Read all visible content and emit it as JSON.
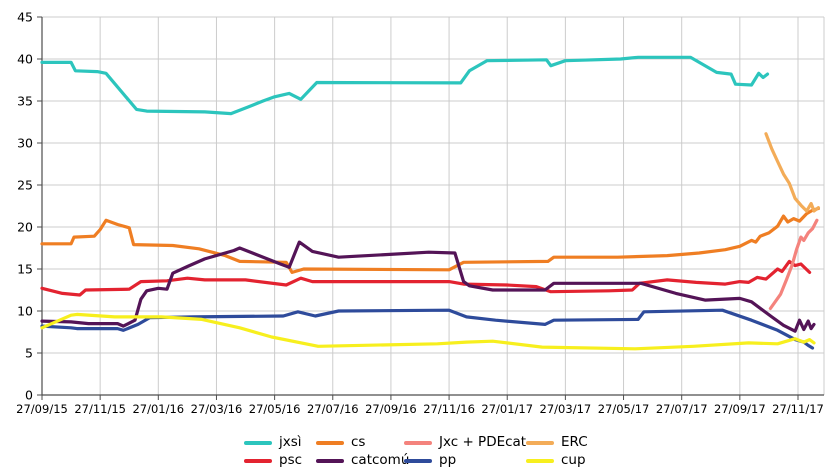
{
  "chart_data": {
    "type": "line",
    "title": "",
    "xlabel": "",
    "ylabel": "",
    "grid": true,
    "legend_position": "bottom",
    "ylim": [
      0,
      45
    ],
    "y_ticks": [
      0,
      5,
      10,
      15,
      20,
      25,
      30,
      35,
      40,
      45
    ],
    "x_tick_labels": [
      "27/09/15",
      "27/11/15",
      "27/01/16",
      "27/03/16",
      "27/05/16",
      "27/07/16",
      "27/09/16",
      "27/11/16",
      "27/01/17",
      "27/03/17",
      "27/05/17",
      "27/07/17",
      "27/09/17",
      "27/11/17"
    ],
    "x_unit": "months since 27/09/15, ticks every 2 months",
    "xlim_months": [
      0,
      26.9
    ],
    "series": [
      {
        "id": "jxsi",
        "name": "jxsì",
        "color": "#2cc5bd",
        "points": [
          [
            0,
            39.6
          ],
          [
            1.0,
            39.6
          ],
          [
            1.15,
            38.6
          ],
          [
            1.9,
            38.5
          ],
          [
            2.2,
            38.3
          ],
          [
            3.25,
            34.0
          ],
          [
            3.6,
            33.8
          ],
          [
            5.6,
            33.7
          ],
          [
            6.5,
            33.5
          ],
          [
            7.1,
            34.3
          ],
          [
            7.6,
            35.0
          ],
          [
            8.0,
            35.5
          ],
          [
            8.5,
            35.9
          ],
          [
            8.9,
            35.2
          ],
          [
            9.45,
            37.2
          ],
          [
            14.4,
            37.15
          ],
          [
            14.7,
            38.6
          ],
          [
            15.3,
            39.8
          ],
          [
            17.35,
            39.9
          ],
          [
            17.5,
            39.2
          ],
          [
            18.0,
            39.8
          ],
          [
            19.9,
            40.0
          ],
          [
            20.5,
            40.2
          ],
          [
            22.3,
            40.2
          ],
          [
            23.2,
            38.4
          ],
          [
            23.7,
            38.2
          ],
          [
            23.85,
            37.0
          ],
          [
            24.4,
            36.9
          ],
          [
            24.65,
            38.3
          ],
          [
            24.8,
            37.8
          ],
          [
            24.95,
            38.2
          ]
        ]
      },
      {
        "id": "cs",
        "name": "cs",
        "color": "#ef7e23",
        "points": [
          [
            0,
            18.0
          ],
          [
            1.0,
            18.0
          ],
          [
            1.1,
            18.8
          ],
          [
            1.8,
            18.9
          ],
          [
            2.0,
            19.7
          ],
          [
            2.2,
            20.8
          ],
          [
            2.6,
            20.3
          ],
          [
            3.0,
            19.9
          ],
          [
            3.15,
            17.9
          ],
          [
            4.5,
            17.8
          ],
          [
            5.4,
            17.4
          ],
          [
            6.3,
            16.6
          ],
          [
            6.8,
            15.9
          ],
          [
            8.4,
            15.8
          ],
          [
            8.6,
            14.6
          ],
          [
            9.0,
            15.0
          ],
          [
            14.0,
            14.9
          ],
          [
            14.5,
            15.8
          ],
          [
            17.4,
            15.9
          ],
          [
            17.6,
            16.4
          ],
          [
            19.8,
            16.4
          ],
          [
            21.5,
            16.6
          ],
          [
            22.6,
            16.9
          ],
          [
            23.5,
            17.3
          ],
          [
            24.0,
            17.7
          ],
          [
            24.4,
            18.4
          ],
          [
            24.55,
            18.2
          ],
          [
            24.7,
            18.9
          ],
          [
            25.0,
            19.3
          ],
          [
            25.3,
            20.1
          ],
          [
            25.5,
            21.3
          ],
          [
            25.65,
            20.6
          ],
          [
            25.85,
            21.0
          ],
          [
            26.05,
            20.7
          ],
          [
            26.3,
            21.6
          ],
          [
            26.5,
            22.0
          ],
          [
            26.7,
            22.2
          ]
        ]
      },
      {
        "id": "erc",
        "name": "ERC",
        "color": "#f3ac58",
        "points": [
          [
            24.9,
            31.1
          ],
          [
            25.1,
            29.3
          ],
          [
            25.3,
            27.8
          ],
          [
            25.5,
            26.3
          ],
          [
            25.7,
            25.2
          ],
          [
            25.9,
            23.4
          ],
          [
            26.1,
            22.6
          ],
          [
            26.3,
            21.9
          ],
          [
            26.45,
            22.8
          ],
          [
            26.55,
            21.9
          ],
          [
            26.7,
            22.3
          ]
        ]
      },
      {
        "id": "psc",
        "name": "psc",
        "color": "#e32330",
        "points": [
          [
            0,
            12.7
          ],
          [
            0.7,
            12.1
          ],
          [
            1.3,
            11.9
          ],
          [
            1.5,
            12.5
          ],
          [
            3.0,
            12.6
          ],
          [
            3.4,
            13.5
          ],
          [
            4.3,
            13.6
          ],
          [
            5.0,
            13.9
          ],
          [
            5.6,
            13.7
          ],
          [
            7.0,
            13.7
          ],
          [
            8.4,
            13.1
          ],
          [
            8.9,
            13.9
          ],
          [
            9.3,
            13.5
          ],
          [
            14.0,
            13.5
          ],
          [
            14.5,
            13.2
          ],
          [
            16.0,
            13.1
          ],
          [
            17.0,
            12.9
          ],
          [
            17.5,
            12.3
          ],
          [
            19.5,
            12.4
          ],
          [
            20.3,
            12.5
          ],
          [
            20.55,
            13.3
          ],
          [
            21.5,
            13.7
          ],
          [
            22.5,
            13.4
          ],
          [
            23.5,
            13.2
          ],
          [
            24.0,
            13.5
          ],
          [
            24.3,
            13.4
          ],
          [
            24.6,
            14.0
          ],
          [
            24.9,
            13.8
          ],
          [
            25.3,
            15.0
          ],
          [
            25.45,
            14.7
          ],
          [
            25.7,
            15.9
          ],
          [
            25.9,
            15.4
          ],
          [
            26.1,
            15.6
          ],
          [
            26.4,
            14.6
          ]
        ]
      },
      {
        "id": "jxc_pdecat",
        "name": "Jxc + PDEcat",
        "color": "#f4837d",
        "points": [
          [
            25.05,
            10.3
          ],
          [
            25.4,
            12.0
          ],
          [
            25.6,
            13.7
          ],
          [
            25.8,
            15.5
          ],
          [
            25.95,
            17.3
          ],
          [
            26.1,
            18.8
          ],
          [
            26.2,
            18.4
          ],
          [
            26.35,
            19.3
          ],
          [
            26.5,
            19.8
          ],
          [
            26.65,
            20.8
          ]
        ]
      },
      {
        "id": "catcomu",
        "name": "catcomú",
        "color": "#541457",
        "points": [
          [
            0,
            8.8
          ],
          [
            1.0,
            8.7
          ],
          [
            1.6,
            8.5
          ],
          [
            2.6,
            8.5
          ],
          [
            2.8,
            8.2
          ],
          [
            3.2,
            8.9
          ],
          [
            3.4,
            11.4
          ],
          [
            3.6,
            12.4
          ],
          [
            4.0,
            12.7
          ],
          [
            4.3,
            12.6
          ],
          [
            4.5,
            14.5
          ],
          [
            5.0,
            15.3
          ],
          [
            5.6,
            16.2
          ],
          [
            6.6,
            17.2
          ],
          [
            6.8,
            17.5
          ],
          [
            8.2,
            15.6
          ],
          [
            8.5,
            15.2
          ],
          [
            8.85,
            18.2
          ],
          [
            9.3,
            17.1
          ],
          [
            10.2,
            16.4
          ],
          [
            13.3,
            17.0
          ],
          [
            14.2,
            16.9
          ],
          [
            14.5,
            13.5
          ],
          [
            14.7,
            13.0
          ],
          [
            15.5,
            12.5
          ],
          [
            17.3,
            12.5
          ],
          [
            17.6,
            13.3
          ],
          [
            20.6,
            13.3
          ],
          [
            21.8,
            12.1
          ],
          [
            22.8,
            11.3
          ],
          [
            24.0,
            11.5
          ],
          [
            24.4,
            11.1
          ],
          [
            25.1,
            9.3
          ],
          [
            25.5,
            8.3
          ],
          [
            25.9,
            7.6
          ],
          [
            26.05,
            8.9
          ],
          [
            26.2,
            7.8
          ],
          [
            26.35,
            8.8
          ],
          [
            26.45,
            7.9
          ],
          [
            26.55,
            8.4
          ]
        ]
      },
      {
        "id": "pp",
        "name": "pp",
        "color": "#2e4b9b",
        "points": [
          [
            0,
            8.2
          ],
          [
            1.0,
            8.0
          ],
          [
            1.2,
            7.9
          ],
          [
            2.6,
            7.9
          ],
          [
            2.8,
            7.7
          ],
          [
            3.3,
            8.4
          ],
          [
            3.7,
            9.2
          ],
          [
            5.2,
            9.3
          ],
          [
            8.3,
            9.4
          ],
          [
            8.8,
            9.9
          ],
          [
            9.4,
            9.4
          ],
          [
            10.2,
            10.0
          ],
          [
            14.0,
            10.1
          ],
          [
            14.6,
            9.3
          ],
          [
            15.6,
            8.9
          ],
          [
            17.3,
            8.4
          ],
          [
            17.6,
            8.9
          ],
          [
            20.5,
            9.0
          ],
          [
            20.7,
            9.9
          ],
          [
            23.4,
            10.1
          ],
          [
            24.4,
            8.9
          ],
          [
            25.3,
            7.7
          ],
          [
            25.9,
            6.6
          ],
          [
            26.2,
            6.3
          ],
          [
            26.35,
            5.9
          ],
          [
            26.5,
            5.6
          ]
        ]
      },
      {
        "id": "cup",
        "name": "cup",
        "color": "#f7ef1e",
        "points": [
          [
            0,
            8.0
          ],
          [
            1.0,
            9.5
          ],
          [
            1.2,
            9.6
          ],
          [
            2.5,
            9.3
          ],
          [
            4.1,
            9.3
          ],
          [
            5.5,
            9.0
          ],
          [
            6.8,
            8.0
          ],
          [
            7.9,
            6.9
          ],
          [
            9.5,
            5.8
          ],
          [
            13.6,
            6.1
          ],
          [
            14.6,
            6.3
          ],
          [
            15.5,
            6.4
          ],
          [
            17.2,
            5.7
          ],
          [
            20.4,
            5.5
          ],
          [
            22.4,
            5.8
          ],
          [
            24.3,
            6.2
          ],
          [
            25.3,
            6.1
          ],
          [
            25.9,
            6.7
          ],
          [
            26.2,
            6.3
          ],
          [
            26.4,
            6.6
          ],
          [
            26.55,
            6.2
          ]
        ]
      }
    ],
    "legend_rows": [
      [
        "jxsi",
        "cs",
        "jxc_pdecat",
        "erc"
      ],
      [
        "psc",
        "catcomu",
        "pp",
        "cup"
      ]
    ]
  },
  "style": {
    "grid_color": "#cccccc",
    "axis_color": "#4d4d4d",
    "tick_color": "#4d4d4d",
    "background": "#ffffff",
    "line_width": 3.2
  }
}
